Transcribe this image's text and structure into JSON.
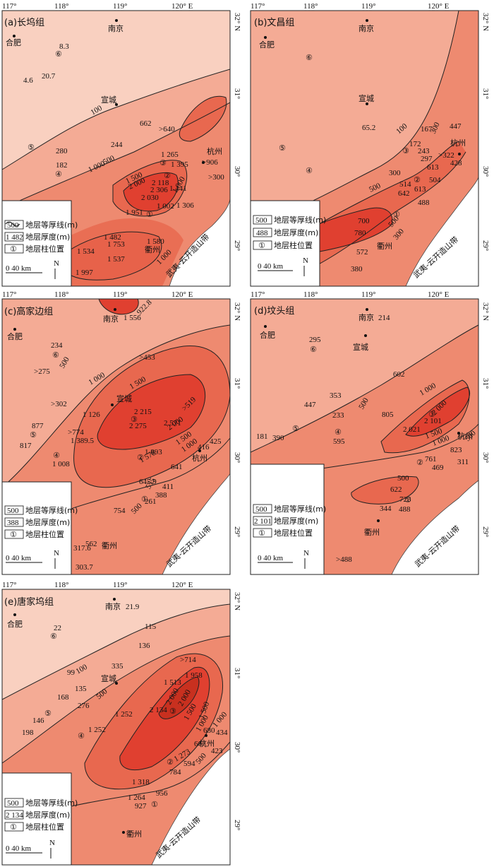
{
  "longitude_labels": [
    "117°",
    "118°",
    "119°",
    "120° E"
  ],
  "latitude_labels": [
    "32° N",
    "31°",
    "30°",
    "29°"
  ],
  "legend": {
    "contour_label": "地层等厚线(m)",
    "thickness_label": "地层厚度(m)",
    "column_label": "地层柱位置",
    "column_symbol": "①",
    "scale": "0    40 km",
    "north": "N"
  },
  "cities": {
    "nanjing": "南京",
    "hefei": "合肥",
    "xuancheng": "宣城",
    "hangzhou": "杭州",
    "quzhou": "衢州"
  },
  "belt_label": "武夷-云开造山带",
  "colors": {
    "c1": "#f9d0c0",
    "c2": "#f4ab95",
    "c3": "#ee8a70",
    "c4": "#e8684f",
    "c5": "#e04030",
    "outline": "#222222"
  },
  "panels": [
    {
      "id": "a",
      "title": "(a)长坞组",
      "legend_contour": "500",
      "legend_thickness": "1 482",
      "values": [
        "8.3",
        "4.6",
        "20.7",
        "662",
        ">640",
        "280",
        "244",
        "182",
        "1 265",
        "1 395",
        ">906",
        ">300",
        "2 118",
        "2 306",
        "2 030",
        "1 441",
        "1 951",
        "1 002",
        "1 306",
        "1 482",
        "1 753",
        "1 534",
        "1 537",
        "1 580",
        "1 997"
      ],
      "contours": [
        "100",
        "500",
        "1 000",
        "1 500",
        "2 000",
        "1 000",
        "1 000",
        "1 500"
      ],
      "columns": [
        "⑥",
        "⑤",
        "④",
        "③",
        "②",
        "①"
      ]
    },
    {
      "id": "b",
      "title": "(b)文昌组",
      "legend_contour": "500",
      "legend_thickness": "488",
      "values": [
        "65.2",
        "167",
        "447",
        "172",
        "243",
        "297",
        ">322",
        "428",
        "514",
        "613",
        "642",
        "613",
        "504",
        "488",
        "780",
        "572",
        "380"
      ],
      "contours": [
        "100",
        "300",
        "300",
        "500",
        "700",
        "500",
        "300"
      ],
      "columns": [
        "⑥",
        "⑤",
        "④",
        "③",
        "②",
        "①"
      ]
    },
    {
      "id": "c",
      "title": "(c)高家边组",
      "legend_contour": "500",
      "legend_thickness": "388",
      "values": [
        "1 556",
        "922.8",
        "234",
        ">453",
        ">275",
        ">302",
        "1 126",
        "2 215",
        "2 275",
        "2 571",
        ">519",
        "877",
        ">774",
        "1 389.5",
        "817",
        "1 008",
        "1 893",
        "1 578",
        "416",
        "425",
        "641",
        "645.9",
        "555",
        "411",
        "388",
        "754",
        "261",
        "562",
        "317.6",
        "303.7"
      ],
      "contours": [
        "500",
        "1 000",
        "1 500",
        "2 000",
        "1 500",
        "1 000",
        "500"
      ],
      "columns": [
        "⑥",
        "⑤",
        "④",
        "③",
        "②",
        "①"
      ]
    },
    {
      "id": "d",
      "title": "(d)坟头组",
      "legend_contour": "500",
      "legend_thickness": "2 101",
      "values": [
        "214",
        "295",
        "602",
        "353",
        "447",
        "233",
        "805",
        "2 000",
        "2 021",
        "2 101",
        "181",
        "390",
        "595",
        "823",
        "761",
        "469",
        "311",
        "622",
        "723",
        "344",
        "488",
        ">488"
      ],
      "contours": [
        "500",
        "1 000",
        "1 500",
        "1 000",
        "500",
        "500"
      ],
      "columns": [
        "⑥",
        "⑤",
        "④",
        "③",
        "②",
        "①"
      ]
    },
    {
      "id": "e",
      "title": "(e)唐家坞组",
      "legend_contour": "500",
      "legend_thickness": "2 134",
      "values": [
        "21.9",
        "22",
        "115",
        "136",
        ">714",
        "99",
        "335",
        "1 513",
        "1 958",
        "135",
        "276",
        "168",
        "2 000",
        "2 134",
        "146",
        "1 252",
        "198",
        "1 252",
        "1 500",
        "1 000",
        "680",
        "434",
        "667",
        "423",
        "1 273",
        "594",
        "784",
        "1 318",
        "956",
        "1 264",
        "927"
      ],
      "contours": [
        "100",
        "500",
        "1 000",
        "1 500",
        "2 000",
        "500",
        "1 000"
      ],
      "columns": [
        "⑥",
        "⑤",
        "④",
        "③",
        "②",
        "①"
      ]
    }
  ]
}
